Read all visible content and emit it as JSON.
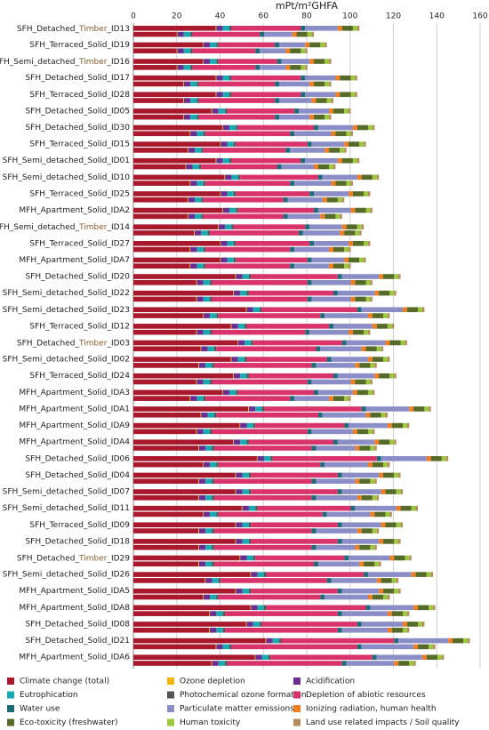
{
  "chart_data": {
    "type": "stacked-barh",
    "x_label": "mPt/m²GHFA",
    "xlim": [
      0,
      160
    ],
    "xticks": [
      0,
      20,
      40,
      60,
      80,
      100,
      120,
      140,
      160
    ],
    "grid": true,
    "legend": "bottom",
    "categories": [
      "SFH_Detached_Timber_ID13",
      null,
      "SFH_Terraced_Solid_ID19",
      null,
      "SFH_Semi_detached_Timber_ID16",
      null,
      "SFH_Detached_Solid_ID17",
      null,
      "SFH_Terraced_Solid_ID28",
      null,
      "SFH_Detached_Solid_ID05",
      null,
      "SFH_Detached_Solid_ID30",
      null,
      "SFH_Terraced_Solid_ID15",
      null,
      "SFH_Semi_detached_Solid_ID01",
      null,
      "SFH_Semi_detached_Solid_ID10",
      null,
      "SFH_Terraced_Solid_ID25",
      null,
      "MFH_Apartment_Solid_IDA2",
      null,
      "SFH_Semi_detached_Timber_ID14",
      null,
      "SFH_Terraced_Solid_ID27",
      null,
      "MFH_Apartment_Solid_IDA7",
      null,
      "SFH_Detached_Solid_ID20",
      null,
      "SFH_Semi_detached_Solid_ID22",
      null,
      "SFH_Semi_detached_Solid_ID23",
      null,
      "SFH_Terraced_Solid_ID12",
      null,
      "SFH_Detached_Timber_ID03",
      null,
      "SFH_Semi_detached_Solid_ID02",
      null,
      "SFH_Terraced_Solid_ID24",
      null,
      "MFH_Apartment_Solid_IDA3",
      null,
      "MFH_Apartment_Solid_IDA1",
      null,
      "MFH_Apartment_Solid_IDA9",
      null,
      "MFH_Apartment_Solid_IDA4",
      null,
      "SFH_Detached_Solid_ID06",
      null,
      "SFH_Detached_Solid_ID04",
      null,
      "SFH_Semi_detached_Solid_ID07",
      null,
      "SFH_Semi_detached_Solid_ID11",
      null,
      "SFH_Terraced_Solid_ID09",
      null,
      "SFH_Detached_Solid_ID18",
      null,
      "SFH_Detached_Timber_ID29",
      null,
      "SFH_Semi_detached_Solid_ID26",
      null,
      "MFH_Apartment_Solid_IDA5",
      null,
      "MFH_Apartment_Solid_IDA8",
      null,
      "SFH_Detached_Solid_ID08",
      null,
      "SFH_Detached_Solid_ID21",
      null,
      "MFH_Apartment_Solid_IDA6",
      null
    ],
    "series": [
      {
        "name": "Climate change (total)",
        "color": "#a8192e",
        "values": [
          38,
          20,
          32,
          20,
          32,
          20,
          38,
          23,
          38,
          23,
          36,
          23,
          41,
          26,
          40,
          25,
          38,
          24,
          42,
          26,
          40,
          25,
          41,
          25,
          39,
          28,
          40,
          26,
          40,
          26,
          47,
          29,
          46,
          29,
          52,
          32,
          45,
          29,
          48,
          31,
          45,
          30,
          46,
          29,
          41,
          26,
          53,
          31,
          49,
          29,
          46,
          30,
          57,
          32,
          47,
          30,
          47,
          30,
          50,
          32,
          47,
          30,
          47,
          30,
          49,
          30,
          54,
          33,
          47,
          32,
          54,
          35,
          52,
          35,
          61,
          38,
          56,
          36
        ]
      },
      {
        "name": "Ozone depletion",
        "color": "#f2b705",
        "values": [
          0.3,
          0.3,
          0.3,
          0.3,
          0.3,
          0.3,
          0.3,
          0.3,
          0.3,
          0.3,
          0.3,
          0.3,
          0.3,
          0.3,
          0.3,
          0.3,
          0.3,
          0.3,
          0.3,
          0.3,
          0.3,
          0.3,
          0.3,
          0.3,
          0.3,
          0.3,
          0.3,
          0.3,
          0.3,
          0.3,
          0.3,
          0.3,
          0.3,
          0.3,
          0.3,
          0.3,
          0.3,
          0.3,
          0.3,
          0.3,
          0.3,
          0.3,
          0.3,
          0.3,
          0.3,
          0.3,
          0.3,
          0.3,
          0.3,
          0.3,
          0.3,
          0.3,
          0.3,
          0.3,
          0.3,
          0.3,
          0.3,
          0.3,
          0.3,
          0.3,
          0.3,
          0.3,
          0.3,
          0.3,
          0.3,
          0.3,
          0.3,
          0.3,
          0.3,
          0.3,
          0.3,
          0.3,
          0.3,
          0.3,
          0.3,
          0.3,
          0.3,
          0.3
        ]
      },
      {
        "name": "Acidification",
        "color": "#6b2d8f",
        "values": [
          3,
          3,
          3,
          3,
          3,
          3,
          3,
          3,
          3,
          3,
          3,
          3,
          3,
          3,
          3,
          3,
          3,
          3,
          3,
          3,
          3,
          3,
          3,
          3,
          3,
          3,
          3,
          3,
          3,
          3,
          3,
          3,
          3,
          3,
          3,
          3,
          3,
          3,
          3,
          3,
          3,
          3,
          3,
          3,
          3,
          3,
          3,
          3,
          3,
          3,
          3,
          3,
          3,
          3,
          3,
          3,
          3,
          3,
          3,
          3,
          3,
          3,
          3,
          3,
          3,
          3,
          3,
          3,
          3,
          3,
          3,
          3,
          3,
          3,
          3,
          3,
          3,
          3
        ]
      },
      {
        "name": "Eutrophication",
        "color": "#1aa9b0",
        "values": [
          3,
          3,
          3,
          3,
          3,
          3,
          3,
          3,
          3,
          3,
          3,
          3,
          3,
          3,
          3,
          3,
          3,
          3,
          3,
          3,
          3,
          3,
          3,
          3,
          3,
          3,
          3,
          3,
          3,
          3,
          3,
          3,
          3,
          3,
          3,
          3,
          3,
          3,
          3,
          3,
          3,
          3,
          3,
          3,
          3,
          3,
          3,
          3,
          3,
          3,
          3,
          3,
          3,
          3,
          3,
          3,
          3,
          3,
          3,
          3,
          3,
          3,
          3,
          3,
          3,
          3,
          3,
          3,
          3,
          3,
          3,
          3,
          3,
          3,
          3,
          3,
          3,
          3
        ]
      },
      {
        "name": "Photochemical ozone formation",
        "color": "#555555",
        "values": [
          1,
          1,
          1,
          1,
          1,
          1,
          1,
          1,
          1,
          1,
          1,
          1,
          1,
          1,
          1,
          1,
          1,
          1,
          1,
          1,
          1,
          1,
          1,
          1,
          1,
          1,
          1,
          1,
          1,
          1,
          1,
          1,
          1,
          1,
          1,
          1,
          1,
          1,
          1,
          1,
          1,
          1,
          1,
          1,
          1,
          1,
          1,
          1,
          1,
          1,
          1,
          1,
          1,
          1,
          1,
          1,
          1,
          1,
          1,
          1,
          1,
          1,
          1,
          1,
          1,
          1,
          1,
          1,
          1,
          1,
          1,
          1,
          1,
          1,
          1,
          1,
          1,
          1
        ]
      },
      {
        "name": "Depletion of abiotic resources",
        "color": "#d8336a",
        "values": [
          32,
          31,
          26,
          29,
          27,
          29,
          32,
          35,
          32,
          35,
          31,
          35,
          35,
          39,
          33,
          38,
          32,
          35,
          36,
          39,
          34,
          37,
          35,
          37,
          33,
          41,
          34,
          39,
          33,
          39,
          40,
          44,
          39,
          44,
          44,
          47,
          38,
          43,
          41,
          46,
          37,
          45,
          39,
          44,
          35,
          39,
          45,
          47,
          41,
          44,
          39,
          45,
          48,
          47,
          40,
          45,
          40,
          45,
          43,
          48,
          40,
          45,
          40,
          45,
          41,
          46,
          45,
          49,
          40,
          47,
          46,
          52,
          44,
          52,
          52,
          58,
          47,
          53
        ]
      },
      {
        "name": "Water use",
        "color": "#1d6b78",
        "values": [
          2,
          2,
          2,
          2,
          2,
          2,
          2,
          2,
          2,
          2,
          2,
          2,
          2,
          2,
          2,
          2,
          2,
          2,
          2,
          2,
          2,
          2,
          2,
          2,
          2,
          2,
          2,
          2,
          2,
          2,
          2,
          2,
          2,
          2,
          2,
          2,
          2,
          2,
          2,
          2,
          2,
          2,
          2,
          2,
          2,
          2,
          2,
          2,
          2,
          2,
          2,
          2,
          2,
          2,
          2,
          2,
          2,
          2,
          2,
          2,
          2,
          2,
          2,
          2,
          2,
          2,
          2,
          2,
          2,
          2,
          2,
          2,
          2,
          2,
          2,
          2,
          2,
          2
        ]
      },
      {
        "name": "Particulate matter emissions",
        "color": "#8b8ec6",
        "values": [
          15,
          13,
          12,
          12,
          13,
          12,
          14,
          14,
          14,
          15,
          14,
          14,
          16,
          17,
          15,
          16,
          15,
          15,
          16,
          17,
          16,
          16,
          15,
          15,
          15,
          17,
          16,
          16,
          15,
          16,
          17,
          18,
          17,
          18,
          19,
          20,
          18,
          18,
          18,
          19,
          17,
          18,
          17,
          18,
          16,
          16,
          20,
          20,
          18,
          19,
          17,
          18,
          21,
          20,
          17,
          18,
          18,
          19,
          19,
          20,
          18,
          19,
          17,
          18,
          19,
          19,
          20,
          21,
          17,
          20,
          20,
          21,
          19,
          21,
          23,
          24,
          21,
          22
        ]
      },
      {
        "name": "Ionizing radiation, human health",
        "color": "#f07d22",
        "values": [
          2,
          2,
          2,
          2,
          2,
          2,
          2,
          2,
          2,
          2,
          2,
          2,
          2,
          2,
          2,
          2,
          2,
          2,
          2,
          2,
          2,
          2,
          2,
          2,
          2,
          2,
          2,
          2,
          2,
          2,
          2,
          2,
          2,
          2,
          2,
          2,
          2,
          2,
          2,
          2,
          2,
          2,
          2,
          2,
          2,
          2,
          2,
          2,
          2,
          2,
          2,
          2,
          2,
          2,
          2,
          2,
          2,
          2,
          2,
          2,
          2,
          2,
          2,
          2,
          2,
          2,
          2,
          2,
          2,
          2,
          2,
          2,
          2,
          2,
          2,
          2,
          2,
          2
        ]
      },
      {
        "name": "Eco-toxicity (freshwater)",
        "color": "#566b2a",
        "values": [
          5,
          5,
          5,
          5,
          5,
          5,
          5,
          5,
          5,
          5,
          5,
          5,
          5,
          5,
          5,
          5,
          5,
          5,
          5,
          5,
          5,
          5,
          5,
          5,
          5,
          5,
          5,
          5,
          5,
          5,
          5,
          5,
          5,
          5,
          5,
          5,
          5,
          5,
          5,
          5,
          5,
          5,
          5,
          5,
          5,
          5,
          5,
          5,
          5,
          5,
          5,
          5,
          5,
          5,
          5,
          5,
          5,
          5,
          5,
          5,
          5,
          5,
          5,
          5,
          5,
          5,
          5,
          5,
          5,
          5,
          5,
          5,
          5,
          5,
          5,
          5,
          5,
          5
        ]
      },
      {
        "name": "Human toxicity",
        "color": "#9cc63e",
        "values": [
          2,
          2,
          2,
          2,
          2,
          2,
          2,
          2,
          2,
          2,
          2,
          2,
          2,
          2,
          2,
          2,
          2,
          2,
          2,
          2,
          2,
          2,
          2,
          2,
          2,
          2,
          2,
          2,
          2,
          2,
          2,
          2,
          2,
          2,
          2,
          2,
          2,
          2,
          2,
          2,
          2,
          2,
          2,
          2,
          2,
          2,
          2,
          2,
          2,
          2,
          2,
          2,
          2,
          2,
          2,
          2,
          2,
          2,
          2,
          2,
          2,
          2,
          2,
          2,
          2,
          2,
          2,
          2,
          2,
          2,
          2,
          2,
          2,
          2,
          2,
          2,
          2,
          2
        ]
      },
      {
        "name": "Land use related impacts / Soil quality",
        "color": "#b38b5d",
        "values": [
          1,
          1,
          1,
          1,
          1,
          1,
          1,
          1,
          1,
          1,
          1,
          1,
          1,
          1,
          1,
          1,
          1,
          1,
          1,
          1,
          1,
          1,
          1,
          1,
          1,
          1,
          1,
          1,
          1,
          1,
          1,
          1,
          1,
          1,
          1,
          1,
          1,
          1,
          1,
          1,
          1,
          1,
          1,
          1,
          1,
          1,
          1,
          1,
          1,
          1,
          1,
          1,
          1,
          1,
          1,
          1,
          1,
          1,
          1,
          1,
          1,
          1,
          1,
          1,
          1,
          1,
          1,
          1,
          1,
          1,
          1,
          1,
          1,
          1,
          1,
          1,
          1,
          1
        ]
      }
    ]
  }
}
